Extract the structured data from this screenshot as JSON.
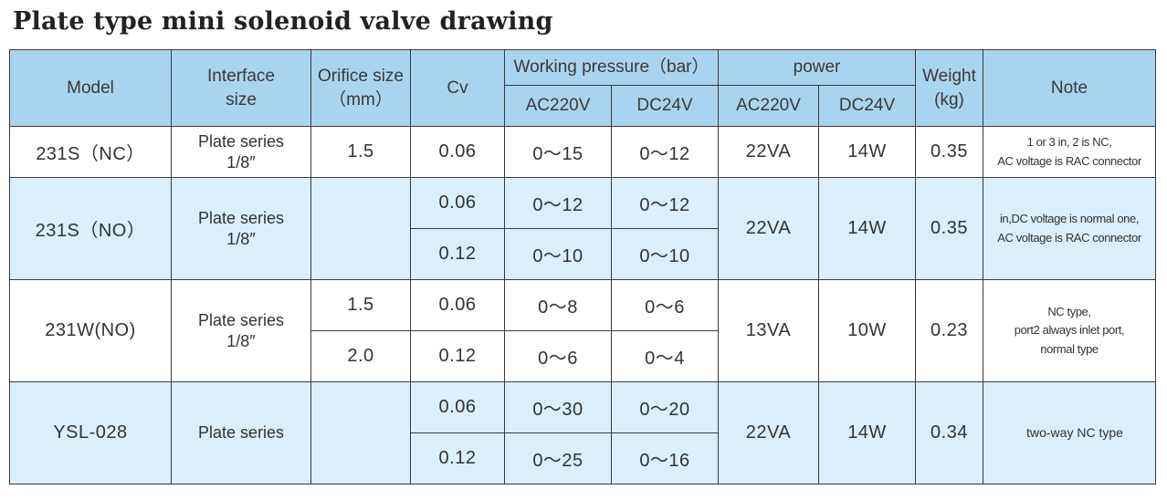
{
  "title": "Plate type mini solenoid valve drawing",
  "headers": {
    "model": "Model",
    "interface_l1": "Interface",
    "interface_l2": "size",
    "orifice_l1": "Orifice size",
    "orifice_l2": "（mm）",
    "cv": "Cv",
    "working_pressure": "Working pressure（bar）",
    "power": "power",
    "weight_l1": "Weight",
    "weight_l2": "(kg)",
    "note": "Note",
    "wp_ac": "AC220V",
    "wp_dc": "DC24V",
    "pw_ac": "AC220V",
    "pw_dc": "DC24V"
  },
  "groups": [
    {
      "model": "231S（NC）",
      "interface_l1": "Plate series",
      "interface_l2": "1/8″",
      "power_ac": "22VA",
      "power_dc": "14W",
      "weight": "0.35",
      "note": [
        "1 or 3 in, 2 is NC,",
        "AC voltage is RAC connector"
      ],
      "rows": [
        {
          "orifice": "1.5",
          "cv": "0.06",
          "wp_ac": "0～15",
          "wp_dc": "0～12"
        }
      ]
    },
    {
      "model": "231S（NO）",
      "interface_l1": "Plate series",
      "interface_l2": "1/8″",
      "power_ac": "22VA",
      "power_dc": "14W",
      "weight": "0.35",
      "note": [
        "in,DC voltage is normal one,",
        "AC voltage is RAC connector"
      ],
      "rows": [
        {
          "orifice": "",
          "cv": "0.06",
          "wp_ac": "0～12",
          "wp_dc": "0～12"
        },
        {
          "cv": "0.12",
          "wp_ac": "0～10",
          "wp_dc": "0～10"
        }
      ]
    },
    {
      "model": "231W(NO)",
      "interface_l1": "Plate series",
      "interface_l2": "1/8″",
      "power_ac": "13VA",
      "power_dc": "10W",
      "weight": "0.23",
      "note": [
        "NC type,",
        "port2 always inlet port,",
        "normal type"
      ],
      "rows": [
        {
          "orifice": "1.5",
          "cv": "0.06",
          "wp_ac": "0～8",
          "wp_dc": "0～6"
        },
        {
          "orifice": "2.0",
          "cv": "0.12",
          "wp_ac": "0～6",
          "wp_dc": "0～4"
        }
      ]
    },
    {
      "model": "YSL-028",
      "interface_l1": "Plate series",
      "interface_l2": "",
      "power_ac": "22VA",
      "power_dc": "14W",
      "weight": "0.34",
      "note": [
        "two-way NC type"
      ],
      "rows": [
        {
          "orifice": "",
          "cv": "0.06",
          "wp_ac": "0～30",
          "wp_dc": "0～20"
        },
        {
          "cv": "0.12",
          "wp_ac": "0～25",
          "wp_dc": "0～16"
        }
      ]
    }
  ]
}
